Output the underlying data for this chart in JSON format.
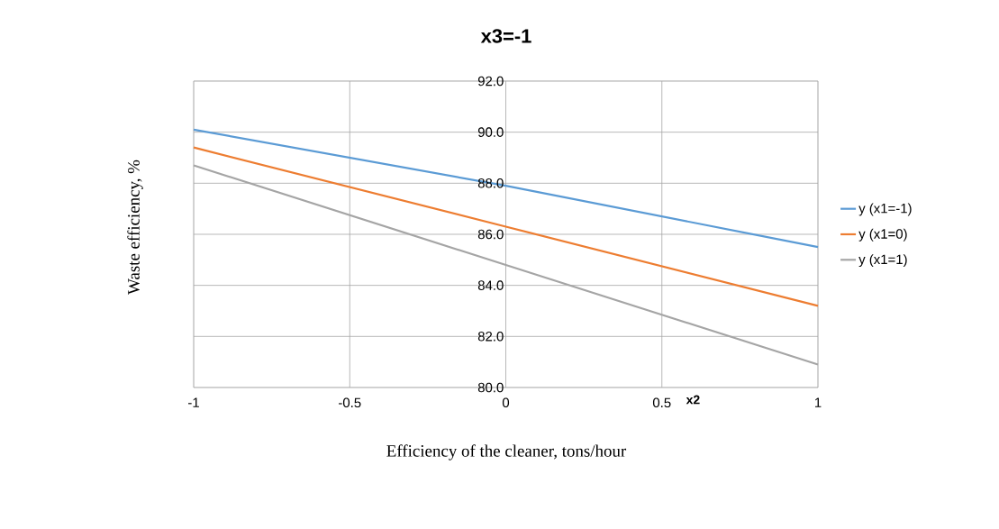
{
  "chart_data": {
    "type": "line",
    "title": "x3=-1",
    "xlabel": "Efficiency of the cleaner, tons/hour",
    "ylabel": "Waste efficiency, %",
    "annotations": [
      "x2"
    ],
    "x": [
      -1,
      0,
      1
    ],
    "series": [
      {
        "name": "y (x1=-1)",
        "color": "#5b9bd5",
        "values": [
          90.1,
          87.9,
          85.5
        ]
      },
      {
        "name": "y (x1=0)",
        "color": "#ed7d31",
        "values": [
          89.4,
          86.3,
          83.2
        ]
      },
      {
        "name": "y (x1=1)",
        "color": "#a5a5a5",
        "values": [
          88.7,
          84.8,
          80.9
        ]
      }
    ],
    "xlim": [
      -1,
      1
    ],
    "xticks": [
      -1,
      -0.5,
      0,
      0.5,
      1
    ],
    "ylim": [
      80,
      92
    ],
    "yticks": [
      {
        "value": 80,
        "label": "80.0"
      },
      {
        "value": 82,
        "label": "82.0"
      },
      {
        "value": 84,
        "label": "84.0"
      },
      {
        "value": 86,
        "label": "86.0"
      },
      {
        "value": 88,
        "label": "88.0"
      },
      {
        "value": 90,
        "label": "90.0"
      },
      {
        "value": 92,
        "label": "92.0"
      }
    ],
    "grid": true,
    "legend": "right",
    "marker": "none",
    "line_style": "solid"
  }
}
